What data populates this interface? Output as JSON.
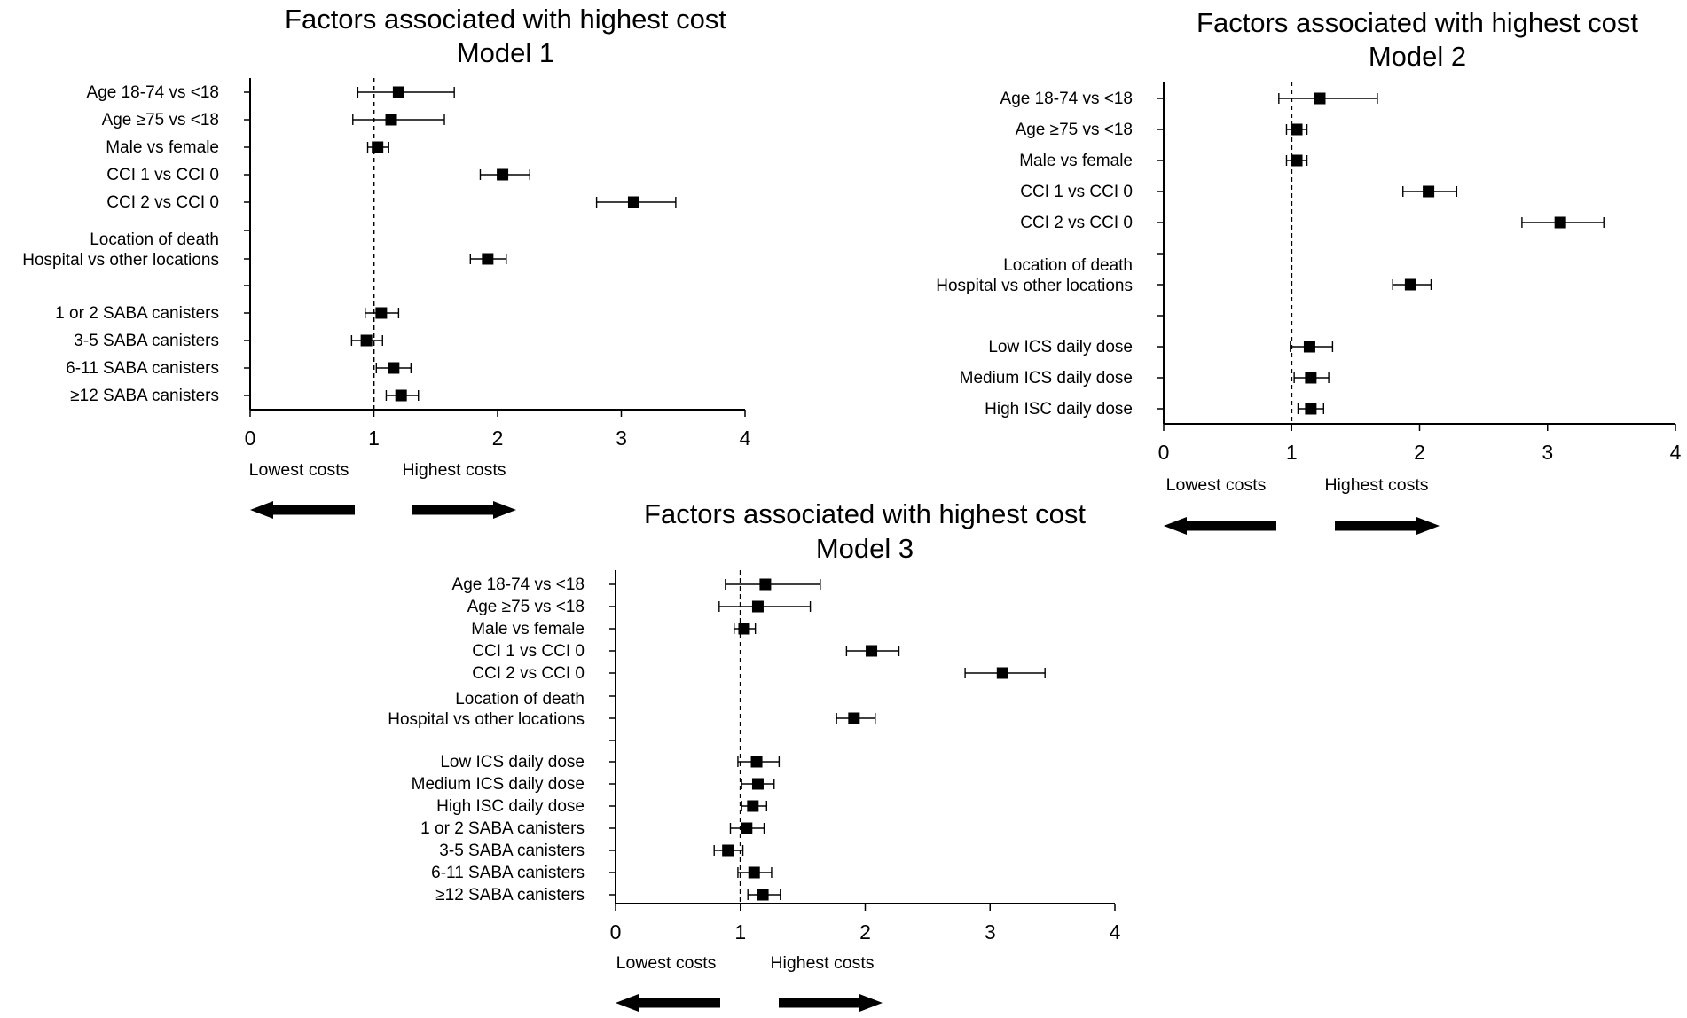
{
  "colors": {
    "ink": "#000000",
    "background": "#ffffff"
  },
  "chart_data": [
    {
      "type": "forest",
      "title": "Factors associated with highest cost",
      "subtitle": "Model 1",
      "xlim": [
        0,
        4
      ],
      "x_ticks": [
        "0",
        "1",
        "2",
        "3",
        "4"
      ],
      "reference_line": 1,
      "direction_labels": {
        "left": "Lowest costs",
        "right": "Highest costs"
      },
      "rows": [
        {
          "label": "Age 18-74 vs <18",
          "estimate": 1.2,
          "lower": 0.87,
          "upper": 1.65
        },
        {
          "label": "Age ≥75 vs <18",
          "estimate": 1.14,
          "lower": 0.83,
          "upper": 1.57
        },
        {
          "label": "Male vs female",
          "estimate": 1.03,
          "lower": 0.95,
          "upper": 1.12
        },
        {
          "label": "CCI 1 vs CCI 0",
          "estimate": 2.04,
          "lower": 1.86,
          "upper": 2.26
        },
        {
          "label": "CCI 2 vs CCI 0",
          "estimate": 3.1,
          "lower": 2.8,
          "upper": 3.44
        },
        {
          "label": "Location of death\nHospital vs other locations",
          "estimate": 1.92,
          "lower": 1.78,
          "upper": 2.07
        },
        {
          "label": "1 or 2 SABA canisters",
          "estimate": 1.06,
          "lower": 0.93,
          "upper": 1.2
        },
        {
          "label": "3-5 SABA canisters",
          "estimate": 0.94,
          "lower": 0.82,
          "upper": 1.07
        },
        {
          "label": "6-11 SABA canisters",
          "estimate": 1.16,
          "lower": 1.02,
          "upper": 1.3
        },
        {
          "label": "≥12 SABA canisters",
          "estimate": 1.22,
          "lower": 1.1,
          "upper": 1.36
        }
      ]
    },
    {
      "type": "forest",
      "title": "Factors associated with highest cost",
      "subtitle": "Model 2",
      "xlim": [
        0,
        4
      ],
      "x_ticks": [
        "0",
        "1",
        "2",
        "3",
        "4"
      ],
      "reference_line": 1,
      "direction_labels": {
        "left": "Lowest costs",
        "right": "Highest costs"
      },
      "rows": [
        {
          "label": "Age 18-74 vs <18",
          "estimate": 1.22,
          "lower": 0.9,
          "upper": 1.67
        },
        {
          "label": "Age ≥75 vs <18",
          "estimate": 1.04,
          "lower": 0.96,
          "upper": 1.12
        },
        {
          "label": "Male vs female",
          "estimate": 1.04,
          "lower": 0.96,
          "upper": 1.12
        },
        {
          "label": "CCI 1 vs CCI 0",
          "estimate": 2.07,
          "lower": 1.87,
          "upper": 2.29
        },
        {
          "label": "CCI 2 vs CCI 0",
          "estimate": 3.1,
          "lower": 2.8,
          "upper": 3.44
        },
        {
          "label": "Location of death\nHospital vs other locations",
          "estimate": 1.93,
          "lower": 1.79,
          "upper": 2.09
        },
        {
          "label": "Low ICS daily dose",
          "estimate": 1.14,
          "lower": 0.99,
          "upper": 1.32
        },
        {
          "label": "Medium ICS daily dose",
          "estimate": 1.15,
          "lower": 1.02,
          "upper": 1.29
        },
        {
          "label": "High ISC daily dose",
          "estimate": 1.15,
          "lower": 1.05,
          "upper": 1.25
        }
      ]
    },
    {
      "type": "forest",
      "title": "Factors associated with highest cost",
      "subtitle": "Model 3",
      "xlim": [
        0,
        4
      ],
      "x_ticks": [
        "0",
        "1",
        "2",
        "3",
        "4"
      ],
      "reference_line": 1,
      "direction_labels": {
        "left": "Lowest costs",
        "right": "Highest costs"
      },
      "rows": [
        {
          "label": "Age 18-74 vs <18",
          "estimate": 1.2,
          "lower": 0.88,
          "upper": 1.64
        },
        {
          "label": "Age ≥75 vs <18",
          "estimate": 1.14,
          "lower": 0.83,
          "upper": 1.56
        },
        {
          "label": "Male vs female",
          "estimate": 1.03,
          "lower": 0.95,
          "upper": 1.12
        },
        {
          "label": "CCI 1 vs CCI 0",
          "estimate": 2.05,
          "lower": 1.85,
          "upper": 2.27
        },
        {
          "label": "CCI 2 vs CCI 0",
          "estimate": 3.1,
          "lower": 2.8,
          "upper": 3.44
        },
        {
          "label": "Location of death\nHospital vs other locations",
          "estimate": 1.91,
          "lower": 1.77,
          "upper": 2.08
        },
        {
          "label": "Low ICS daily dose",
          "estimate": 1.13,
          "lower": 0.98,
          "upper": 1.31
        },
        {
          "label": "Medium ICS daily dose",
          "estimate": 1.14,
          "lower": 1.01,
          "upper": 1.27
        },
        {
          "label": "High ISC daily dose",
          "estimate": 1.1,
          "lower": 1.01,
          "upper": 1.21
        },
        {
          "label": "1 or 2 SABA canisters",
          "estimate": 1.05,
          "lower": 0.92,
          "upper": 1.19
        },
        {
          "label": "3-5 SABA canisters",
          "estimate": 0.9,
          "lower": 0.79,
          "upper": 1.02
        },
        {
          "label": "6-11 SABA canisters",
          "estimate": 1.11,
          "lower": 0.98,
          "upper": 1.25
        },
        {
          "label": "≥12 SABA canisters",
          "estimate": 1.18,
          "lower": 1.06,
          "upper": 1.32
        }
      ]
    }
  ]
}
